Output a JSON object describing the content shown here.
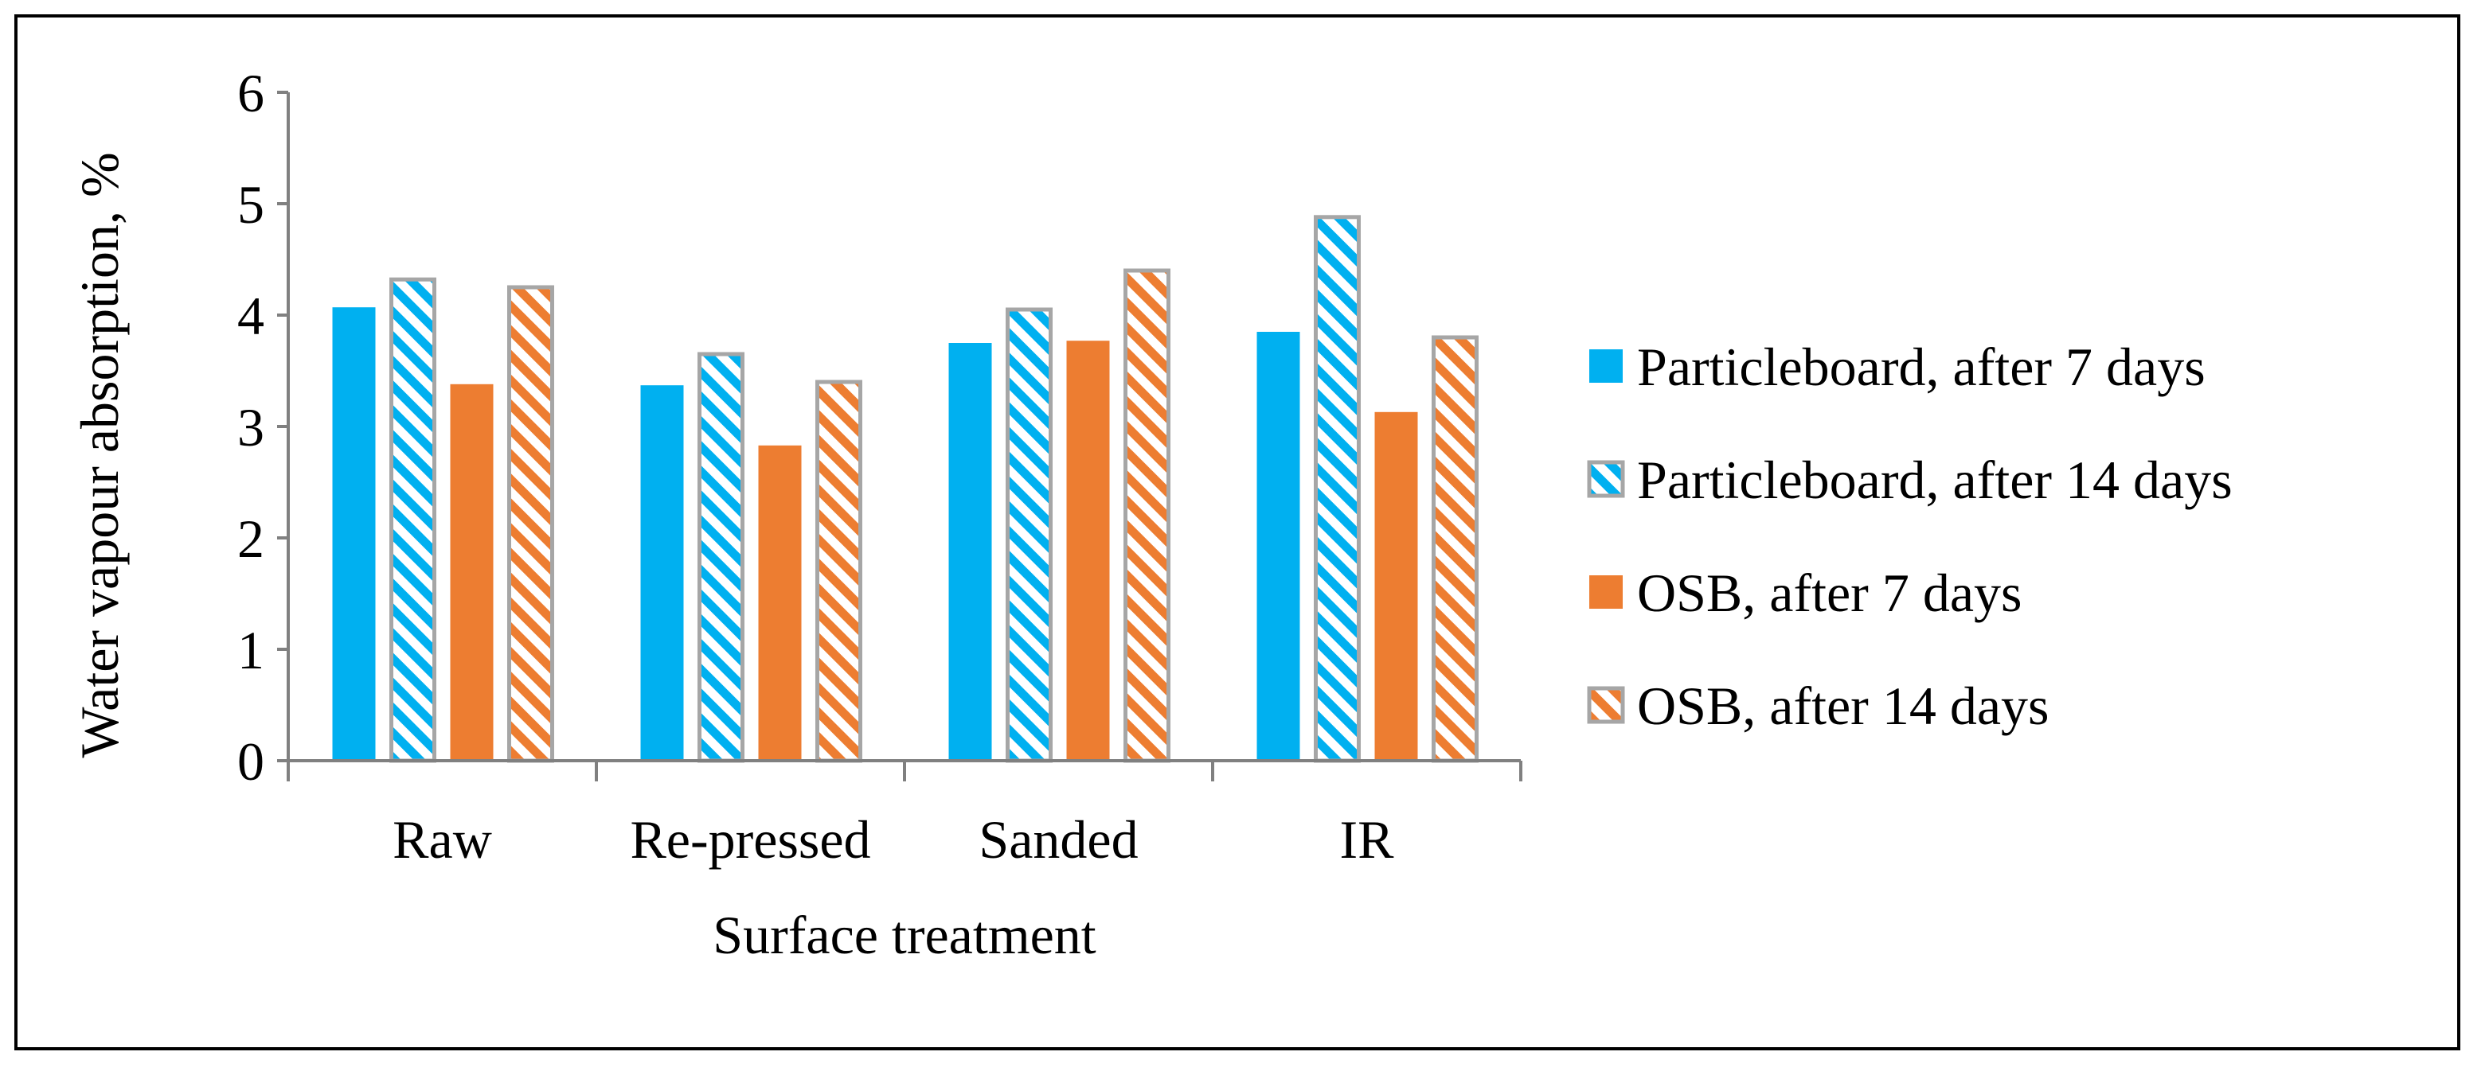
{
  "chart_data": {
    "type": "bar",
    "title": "",
    "xlabel": "Surface treatment",
    "ylabel": "Water vapour absorption, %",
    "ylim": [
      0,
      6
    ],
    "yticks": [
      "0",
      "1",
      "2",
      "3",
      "4",
      "5",
      "6"
    ],
    "categories": [
      "Raw",
      "Re-pressed",
      "Sanded",
      "IR"
    ],
    "legend_position": "right",
    "series": [
      {
        "name": "Particleboard, after 7 days",
        "values": [
          4.07,
          3.37,
          3.75,
          3.85
        ],
        "color": "#00B0F0",
        "pattern": "solid"
      },
      {
        "name": "Particleboard, after 14 days",
        "values": [
          4.32,
          3.65,
          4.05,
          4.88
        ],
        "color": "#00B0F0",
        "pattern": "hatched"
      },
      {
        "name": "OSB, after 7 days",
        "values": [
          3.38,
          2.83,
          3.77,
          3.13
        ],
        "color": "#ED7D31",
        "pattern": "solid"
      },
      {
        "name": "OSB, after 14 days",
        "values": [
          4.25,
          3.4,
          4.4,
          3.8
        ],
        "color": "#ED7D31",
        "pattern": "hatched"
      }
    ],
    "outline_color": "#A6A6A6",
    "axis_color": "#808080"
  }
}
